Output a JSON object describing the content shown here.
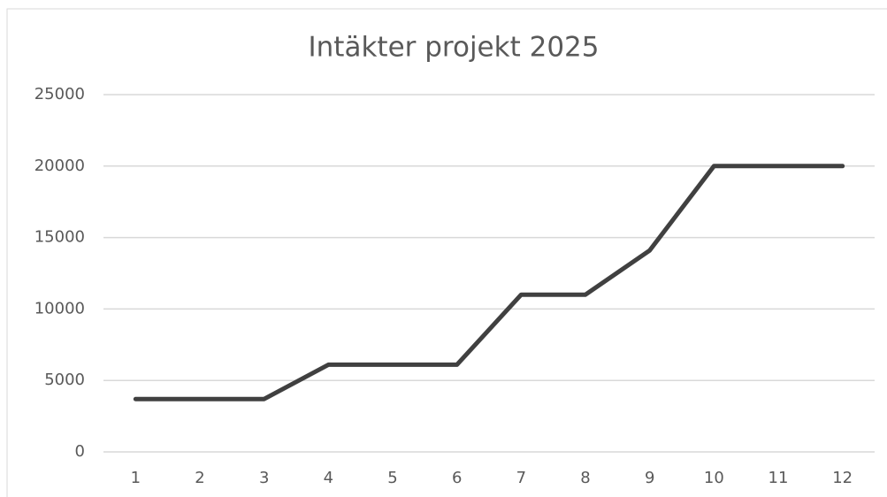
{
  "chart_data": {
    "type": "line",
    "title": "Intäkter projekt 2025",
    "categories": [
      1,
      2,
      3,
      4,
      5,
      6,
      7,
      8,
      9,
      10,
      11,
      12
    ],
    "values": [
      3700,
      3700,
      3700,
      6100,
      6100,
      6100,
      11000,
      11000,
      14100,
      20000,
      20000,
      20000
    ],
    "color": "#404040",
    "ylim": [
      0,
      25000
    ],
    "yticks": [
      0,
      5000,
      10000,
      15000,
      20000,
      25000
    ],
    "grid": true
  }
}
